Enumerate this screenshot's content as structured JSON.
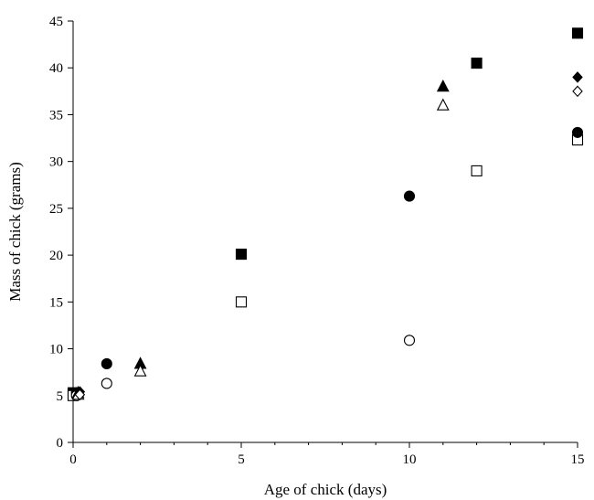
{
  "chart_data": {
    "type": "scatter",
    "title": "",
    "xlabel": "Age of chick (days)",
    "ylabel": "Mass of chick (grams)",
    "xlim": [
      0,
      15
    ],
    "ylim": [
      0,
      45
    ],
    "x_ticks": [
      0,
      5,
      10,
      15
    ],
    "y_ticks": [
      0,
      5,
      10,
      15,
      20,
      25,
      30,
      35,
      40,
      45
    ],
    "grid": false,
    "legend": "none",
    "color": "#000000",
    "series": [
      {
        "marker": "square",
        "filled": true,
        "points": [
          [
            0,
            5.3
          ],
          [
            5,
            20.1
          ],
          [
            12,
            40.5
          ],
          [
            15,
            43.7
          ]
        ]
      },
      {
        "marker": "square",
        "filled": false,
        "points": [
          [
            0,
            5.0
          ],
          [
            5,
            15.0
          ],
          [
            12,
            29.0
          ],
          [
            15,
            32.3
          ]
        ]
      },
      {
        "marker": "circle",
        "filled": true,
        "points": [
          [
            0.1,
            5.3
          ],
          [
            1,
            8.4
          ],
          [
            10,
            26.3
          ],
          [
            15,
            33.1
          ]
        ]
      },
      {
        "marker": "circle",
        "filled": false,
        "points": [
          [
            0.1,
            5.0
          ],
          [
            1,
            6.3
          ],
          [
            10,
            10.9
          ]
        ]
      },
      {
        "marker": "triangle",
        "filled": true,
        "points": [
          [
            0.15,
            5.3
          ],
          [
            2,
            8.4
          ],
          [
            11,
            38.0
          ]
        ]
      },
      {
        "marker": "triangle",
        "filled": false,
        "points": [
          [
            0.15,
            5.1
          ],
          [
            2,
            7.6
          ],
          [
            11,
            36.0
          ]
        ]
      },
      {
        "marker": "diamond",
        "filled": true,
        "points": [
          [
            0.2,
            5.4
          ],
          [
            15,
            39.0
          ]
        ]
      },
      {
        "marker": "diamond",
        "filled": false,
        "points": [
          [
            0.2,
            5.1
          ],
          [
            15,
            37.5
          ]
        ]
      }
    ]
  }
}
